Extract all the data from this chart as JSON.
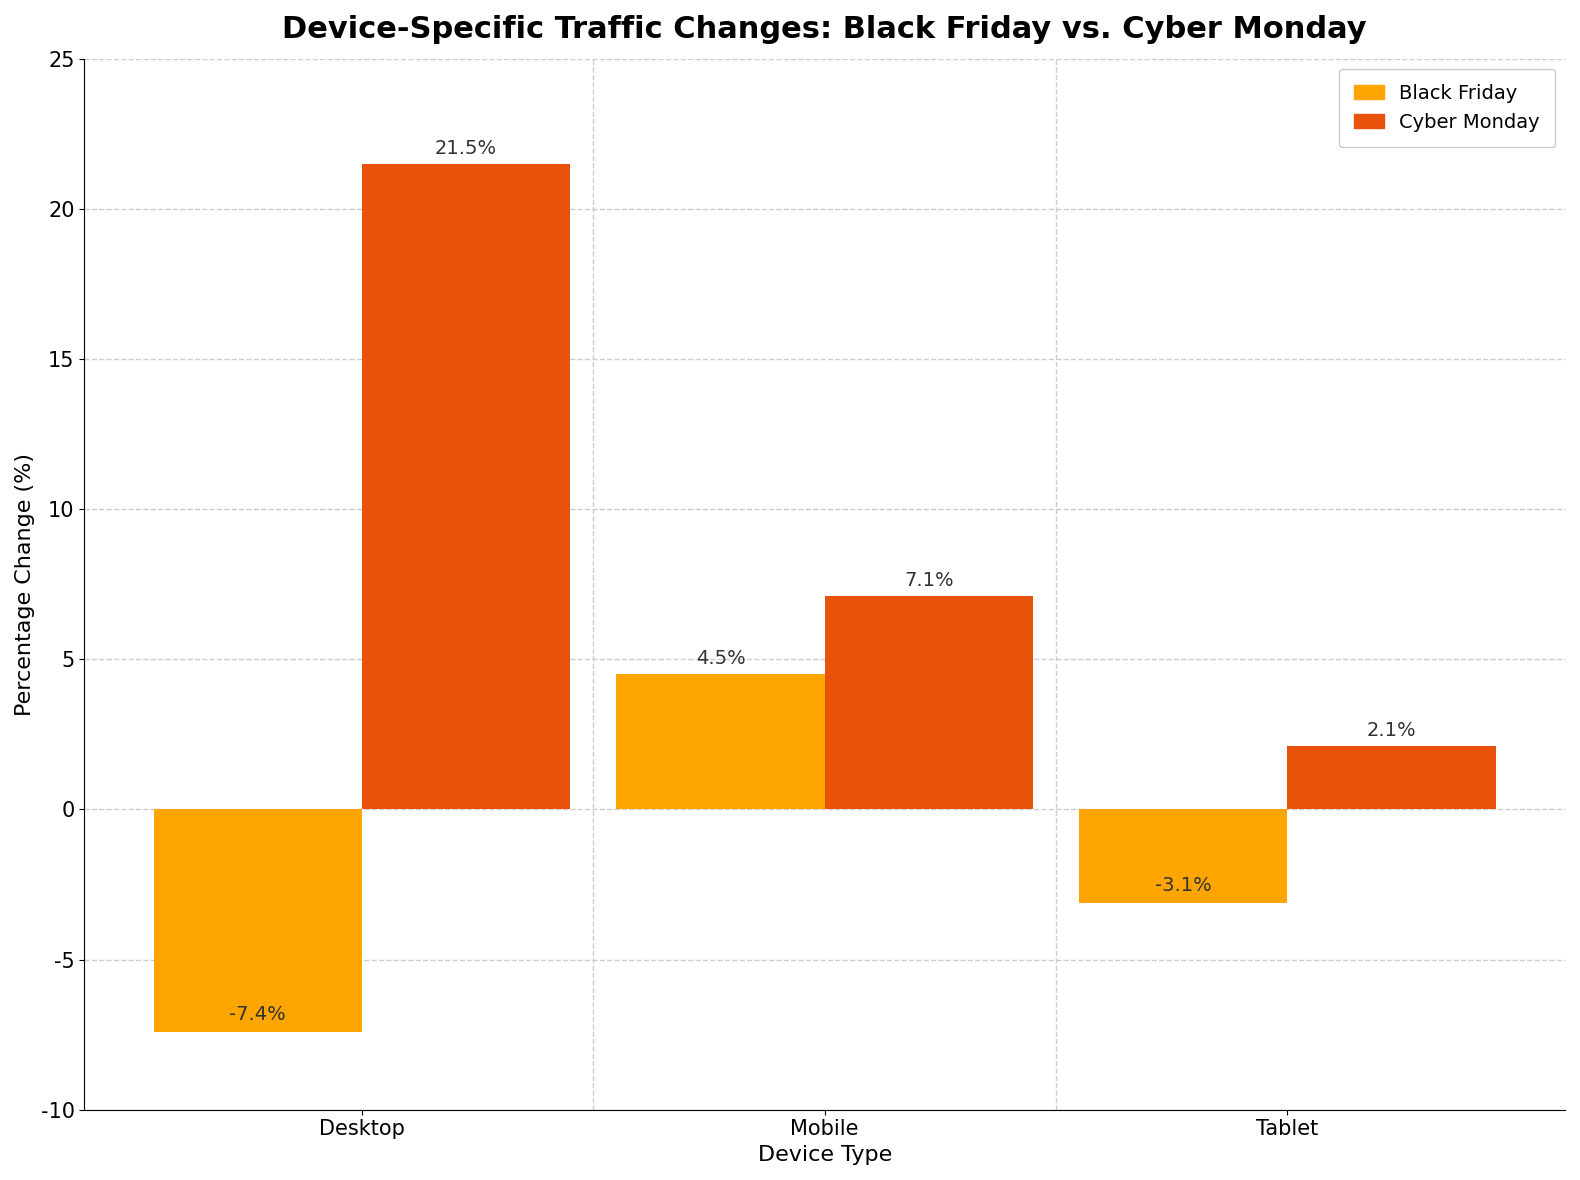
{
  "title": "Device-Specific Traffic Changes: Black Friday vs. Cyber Monday",
  "xlabel": "Device Type",
  "ylabel": "Percentage Change (%)",
  "categories": [
    "Desktop",
    "Mobile",
    "Tablet"
  ],
  "black_friday": [
    -7.4,
    4.5,
    -3.1
  ],
  "cyber_monday": [
    21.5,
    7.1,
    2.1
  ],
  "black_friday_color": "#FFA500",
  "cyber_monday_color": "#E8520A",
  "ylim": [
    -10,
    25
  ],
  "yticks": [
    -10,
    -5,
    0,
    5,
    10,
    15,
    20,
    25
  ],
  "bar_width": 0.45,
  "legend_labels": [
    "Black Friday",
    "Cyber Monday"
  ],
  "title_fontsize": 22,
  "axis_label_fontsize": 16,
  "tick_fontsize": 15,
  "legend_fontsize": 14,
  "annotation_fontsize": 14,
  "background_color": "#ffffff",
  "grid_color": "#cccccc"
}
